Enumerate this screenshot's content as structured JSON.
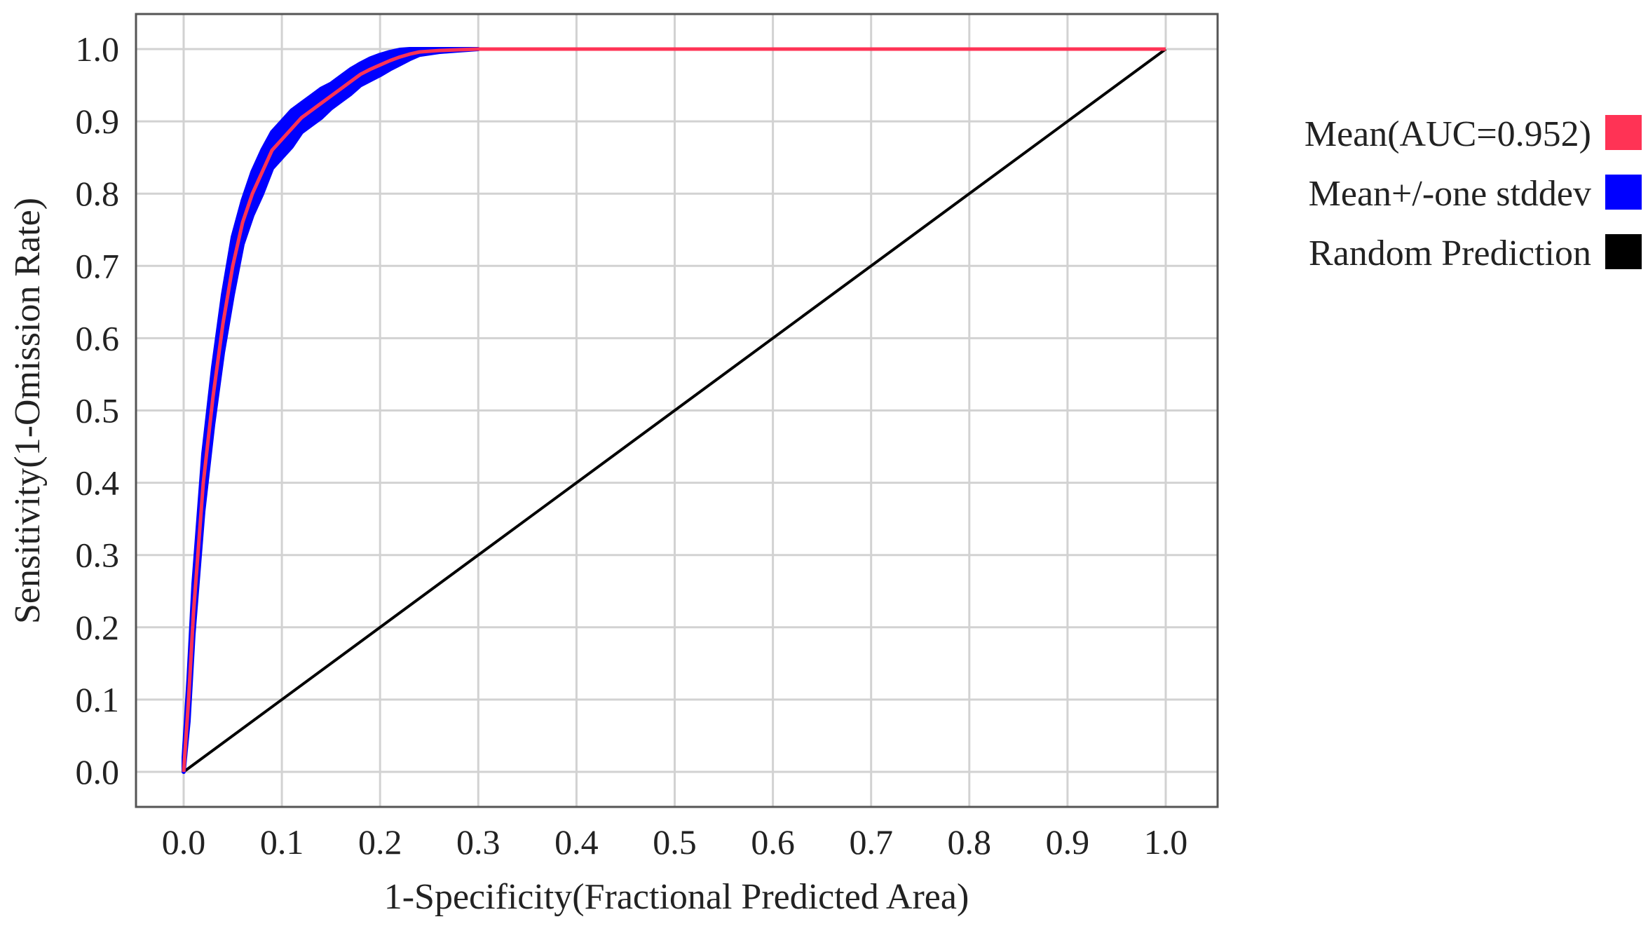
{
  "chart_data": {
    "type": "line",
    "xlabel": "1-Specificity(Fractional Predicted Area)",
    "ylabel": "Sensitivity(1-Omission Rate)",
    "xlim": [
      0.0,
      1.0
    ],
    "ylim": [
      0.0,
      1.0
    ],
    "xticks": [
      "0.0",
      "0.1",
      "0.2",
      "0.3",
      "0.4",
      "0.5",
      "0.6",
      "0.7",
      "0.8",
      "0.9",
      "1.0"
    ],
    "yticks": [
      "0.0",
      "0.1",
      "0.2",
      "0.3",
      "0.4",
      "0.5",
      "0.6",
      "0.7",
      "0.8",
      "0.9",
      "1.0"
    ],
    "grid": true,
    "legend_position": "right",
    "series": [
      {
        "name": "Mean(AUC=0.952)",
        "color": "#ff3355",
        "x": [
          0.0,
          0.005,
          0.01,
          0.02,
          0.03,
          0.04,
          0.05,
          0.06,
          0.07,
          0.08,
          0.09,
          0.1,
          0.11,
          0.12,
          0.13,
          0.14,
          0.15,
          0.16,
          0.17,
          0.18,
          0.19,
          0.2,
          0.21,
          0.22,
          0.23,
          0.24,
          0.26,
          0.28,
          0.3,
          0.4,
          0.5,
          0.6,
          0.7,
          0.8,
          0.9,
          1.0
        ],
        "y": [
          0.0,
          0.1,
          0.22,
          0.4,
          0.52,
          0.62,
          0.7,
          0.76,
          0.8,
          0.83,
          0.86,
          0.875,
          0.89,
          0.905,
          0.915,
          0.925,
          0.935,
          0.945,
          0.955,
          0.965,
          0.972,
          0.978,
          0.984,
          0.989,
          0.993,
          0.996,
          0.998,
          0.999,
          1.0,
          1.0,
          1.0,
          1.0,
          1.0,
          1.0,
          1.0,
          1.0
        ]
      },
      {
        "name": "Mean+/-one stddev",
        "color": "#0000ff",
        "x": [
          0.0,
          0.005,
          0.01,
          0.02,
          0.03,
          0.04,
          0.05,
          0.06,
          0.07,
          0.08,
          0.09,
          0.1,
          0.11,
          0.12,
          0.13,
          0.14,
          0.15,
          0.16,
          0.17,
          0.18,
          0.19,
          0.2,
          0.21,
          0.22,
          0.23,
          0.24,
          0.26,
          0.28,
          0.3
        ],
        "upper": [
          0.02,
          0.13,
          0.26,
          0.44,
          0.56,
          0.66,
          0.74,
          0.79,
          0.83,
          0.86,
          0.885,
          0.9,
          0.915,
          0.925,
          0.935,
          0.945,
          0.952,
          0.962,
          0.972,
          0.98,
          0.987,
          0.992,
          0.996,
          0.999,
          1.0,
          1.0,
          1.0,
          1.0,
          1.0
        ],
        "lower": [
          0.0,
          0.07,
          0.19,
          0.36,
          0.48,
          0.58,
          0.66,
          0.73,
          0.77,
          0.8,
          0.835,
          0.85,
          0.865,
          0.885,
          0.895,
          0.905,
          0.918,
          0.928,
          0.938,
          0.95,
          0.957,
          0.964,
          0.972,
          0.979,
          0.986,
          0.992,
          0.996,
          0.998,
          1.0
        ]
      },
      {
        "name": "Random Prediction",
        "color": "#000000",
        "x": [
          0.0,
          1.0
        ],
        "y": [
          0.0,
          1.0
        ]
      }
    ]
  }
}
